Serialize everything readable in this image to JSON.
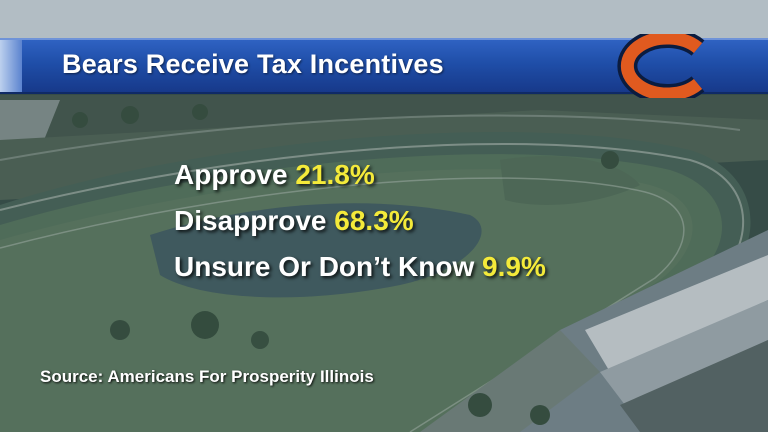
{
  "title": "Bears Receive Tax Incentives",
  "logo": {
    "letter": "C",
    "colors": {
      "orange": "#e05a1f",
      "navy": "#0b1c3f"
    }
  },
  "poll": [
    {
      "label": "Approve",
      "value": "21.8%"
    },
    {
      "label": "Disapprove",
      "value": "68.3%"
    },
    {
      "label": "Unsure Or Don’t Know",
      "value": "9.9%"
    }
  ],
  "source": "Source: Americans For Prosperity Illinois",
  "colors": {
    "title_bar": "#1f4ea8",
    "value_text": "#f4ea3a",
    "label_text": "#ffffff"
  }
}
